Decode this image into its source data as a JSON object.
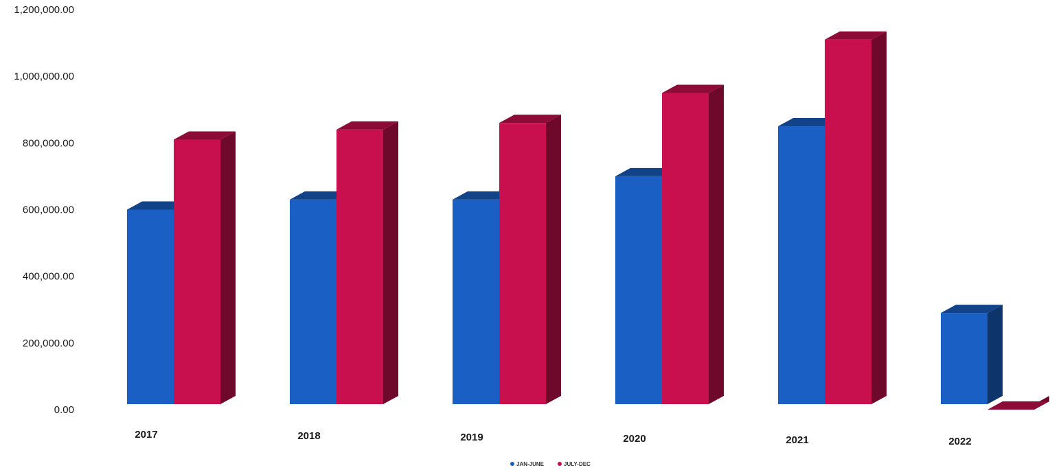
{
  "chart_data": {
    "type": "bar",
    "style": "3d-clustered-column",
    "categories": [
      "2017",
      "2018",
      "2019",
      "2020",
      "2021",
      "2022"
    ],
    "series": [
      {
        "name": "JAN-JUNE",
        "color": "#1a5fc4",
        "values": [
          600000,
          630000,
          630000,
          700000,
          850000,
          290000
        ]
      },
      {
        "name": "JULY-DEC",
        "color": "#c8104f",
        "values": [
          810000,
          840000,
          860000,
          950000,
          1110000,
          0
        ]
      }
    ],
    "ylim": [
      0,
      1200000
    ],
    "y_ticks": [
      "0.00",
      "200,000.00",
      "400,000.00",
      "600,000.00",
      "800,000.00",
      "1,000,000.00",
      "1,200,000.00"
    ],
    "grid": false,
    "legend_position": "bottom"
  }
}
